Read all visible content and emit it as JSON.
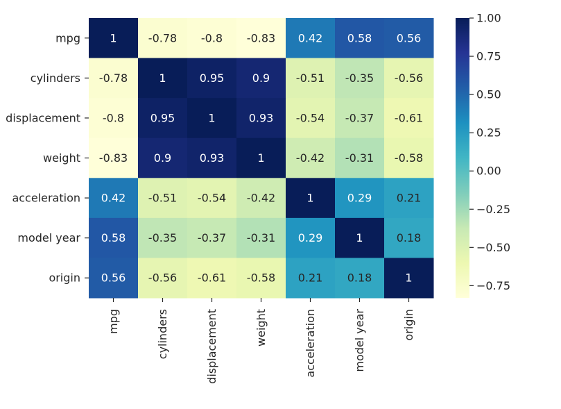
{
  "chart_data": {
    "type": "heatmap",
    "title": "",
    "xlabel": "",
    "ylabel": "",
    "colormap": "YlGnBu",
    "annotate": true,
    "row_labels": [
      "mpg",
      "cylinders",
      "displacement",
      "weight",
      "acceleration",
      "model year",
      "origin"
    ],
    "col_labels": [
      "mpg",
      "cylinders",
      "displacement",
      "weight",
      "acceleration",
      "model year",
      "origin"
    ],
    "values": [
      [
        1,
        -0.78,
        -0.8,
        -0.83,
        0.42,
        0.58,
        0.56
      ],
      [
        -0.78,
        1,
        0.95,
        0.9,
        -0.51,
        -0.35,
        -0.56
      ],
      [
        -0.8,
        0.95,
        1,
        0.93,
        -0.54,
        -0.37,
        -0.61
      ],
      [
        -0.83,
        0.9,
        0.93,
        1,
        -0.42,
        -0.31,
        -0.58
      ],
      [
        0.42,
        -0.51,
        -0.54,
        -0.42,
        1,
        0.29,
        0.21
      ],
      [
        0.58,
        -0.35,
        -0.37,
        -0.31,
        0.29,
        1,
        0.18
      ],
      [
        0.56,
        -0.56,
        -0.61,
        -0.58,
        0.21,
        0.18,
        1
      ]
    ],
    "colorbar": {
      "range": [
        -0.83,
        1.0
      ],
      "ticks": [
        1.0,
        0.75,
        0.5,
        0.25,
        0.0,
        -0.25,
        -0.5,
        -0.75
      ],
      "tick_labels": [
        "1.00",
        "0.75",
        "0.50",
        "0.25",
        "0.00",
        "−0.25",
        "−0.50",
        "−0.75"
      ],
      "placement": "right"
    },
    "grid": false,
    "legend": "colorbar-right"
  }
}
